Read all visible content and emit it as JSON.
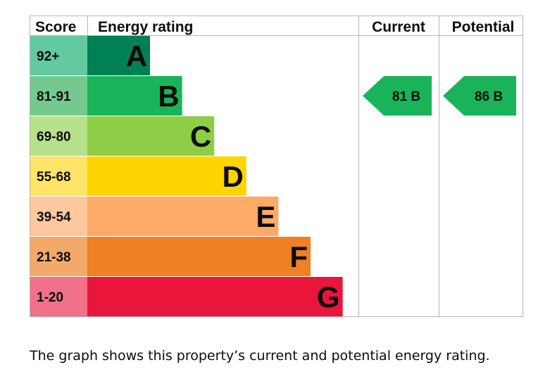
{
  "chart_data": {
    "type": "bar",
    "headers": {
      "score": "Score",
      "rating": "Energy rating",
      "current": "Current",
      "potential": "Potential"
    },
    "bands": [
      {
        "letter": "A",
        "range": "92+",
        "color": "#008054",
        "score_color": "#63c99f"
      },
      {
        "letter": "B",
        "range": "81-91",
        "color": "#19b459",
        "score_color": "#75c98f"
      },
      {
        "letter": "C",
        "range": "69-80",
        "color": "#8dce46",
        "score_color": "#b7e18b"
      },
      {
        "letter": "D",
        "range": "55-68",
        "color": "#ffd500",
        "score_color": "#ffe467"
      },
      {
        "letter": "E",
        "range": "39-54",
        "color": "#fcaa65",
        "score_color": "#fdc89d"
      },
      {
        "letter": "F",
        "range": "21-38",
        "color": "#ef8023",
        "score_color": "#f3a96a"
      },
      {
        "letter": "G",
        "range": "1-20",
        "color": "#e9153b",
        "score_color": "#f07189"
      }
    ],
    "current": {
      "score": 81,
      "band": "B",
      "label": "81  B",
      "color": "#19b459"
    },
    "potential": {
      "score": 86,
      "band": "B",
      "label": "86  B",
      "color": "#19b459"
    }
  },
  "caption": "The graph shows this property’s current and potential energy rating."
}
